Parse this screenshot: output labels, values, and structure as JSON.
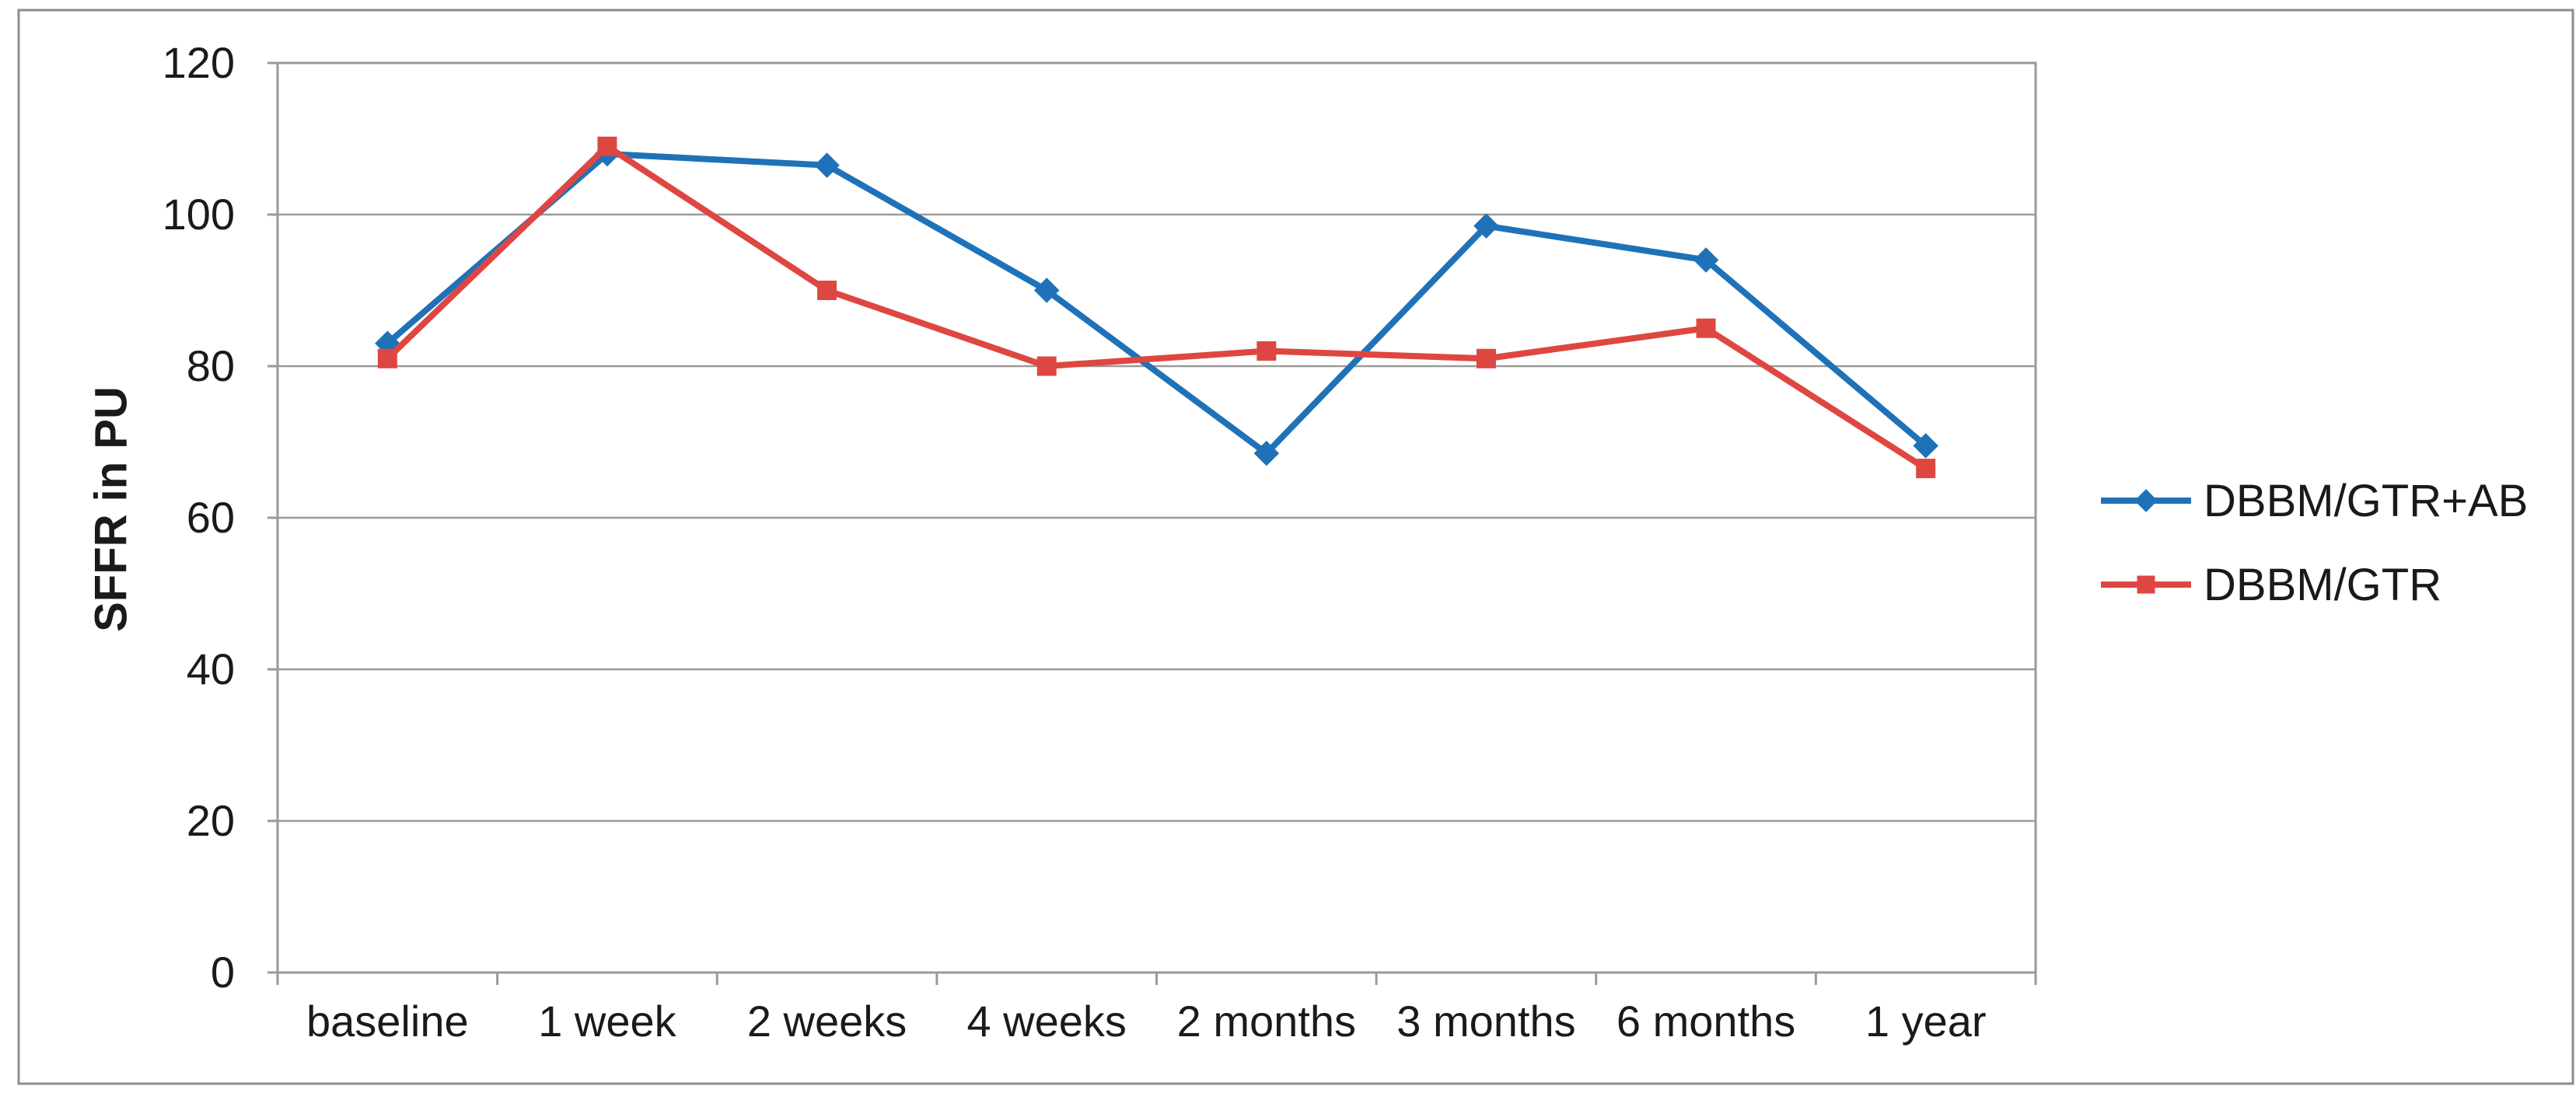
{
  "figure": {
    "background": "#ffffff",
    "outer_border_color": "#8c8c8c"
  },
  "chart_data": {
    "type": "line",
    "title": "",
    "xlabel": "",
    "ylabel": "SFFR in PU",
    "categories": [
      "baseline",
      "1 week",
      "2 weeks",
      "4 weeks",
      "2 months",
      "3 months",
      "6 months",
      "1 year"
    ],
    "series": [
      {
        "name": "DBBM/GTR+AB",
        "color": "#1f72b8",
        "marker": "diamond",
        "values": [
          83,
          108,
          106.5,
          90,
          68.5,
          98.5,
          94,
          69.5
        ]
      },
      {
        "name": "DBBM/GTR",
        "color": "#de4741",
        "marker": "square",
        "values": [
          81,
          109,
          90,
          80,
          82,
          81,
          85,
          66.5
        ]
      }
    ],
    "ylim": [
      0,
      120
    ],
    "yticks": [
      0,
      20,
      40,
      60,
      80,
      100,
      120
    ],
    "grid": true,
    "gridline_color": "#9a9a9a",
    "axis_color": "#9a9a9a",
    "text_color": "#1a1a1a",
    "legend_position": "right-middle"
  }
}
